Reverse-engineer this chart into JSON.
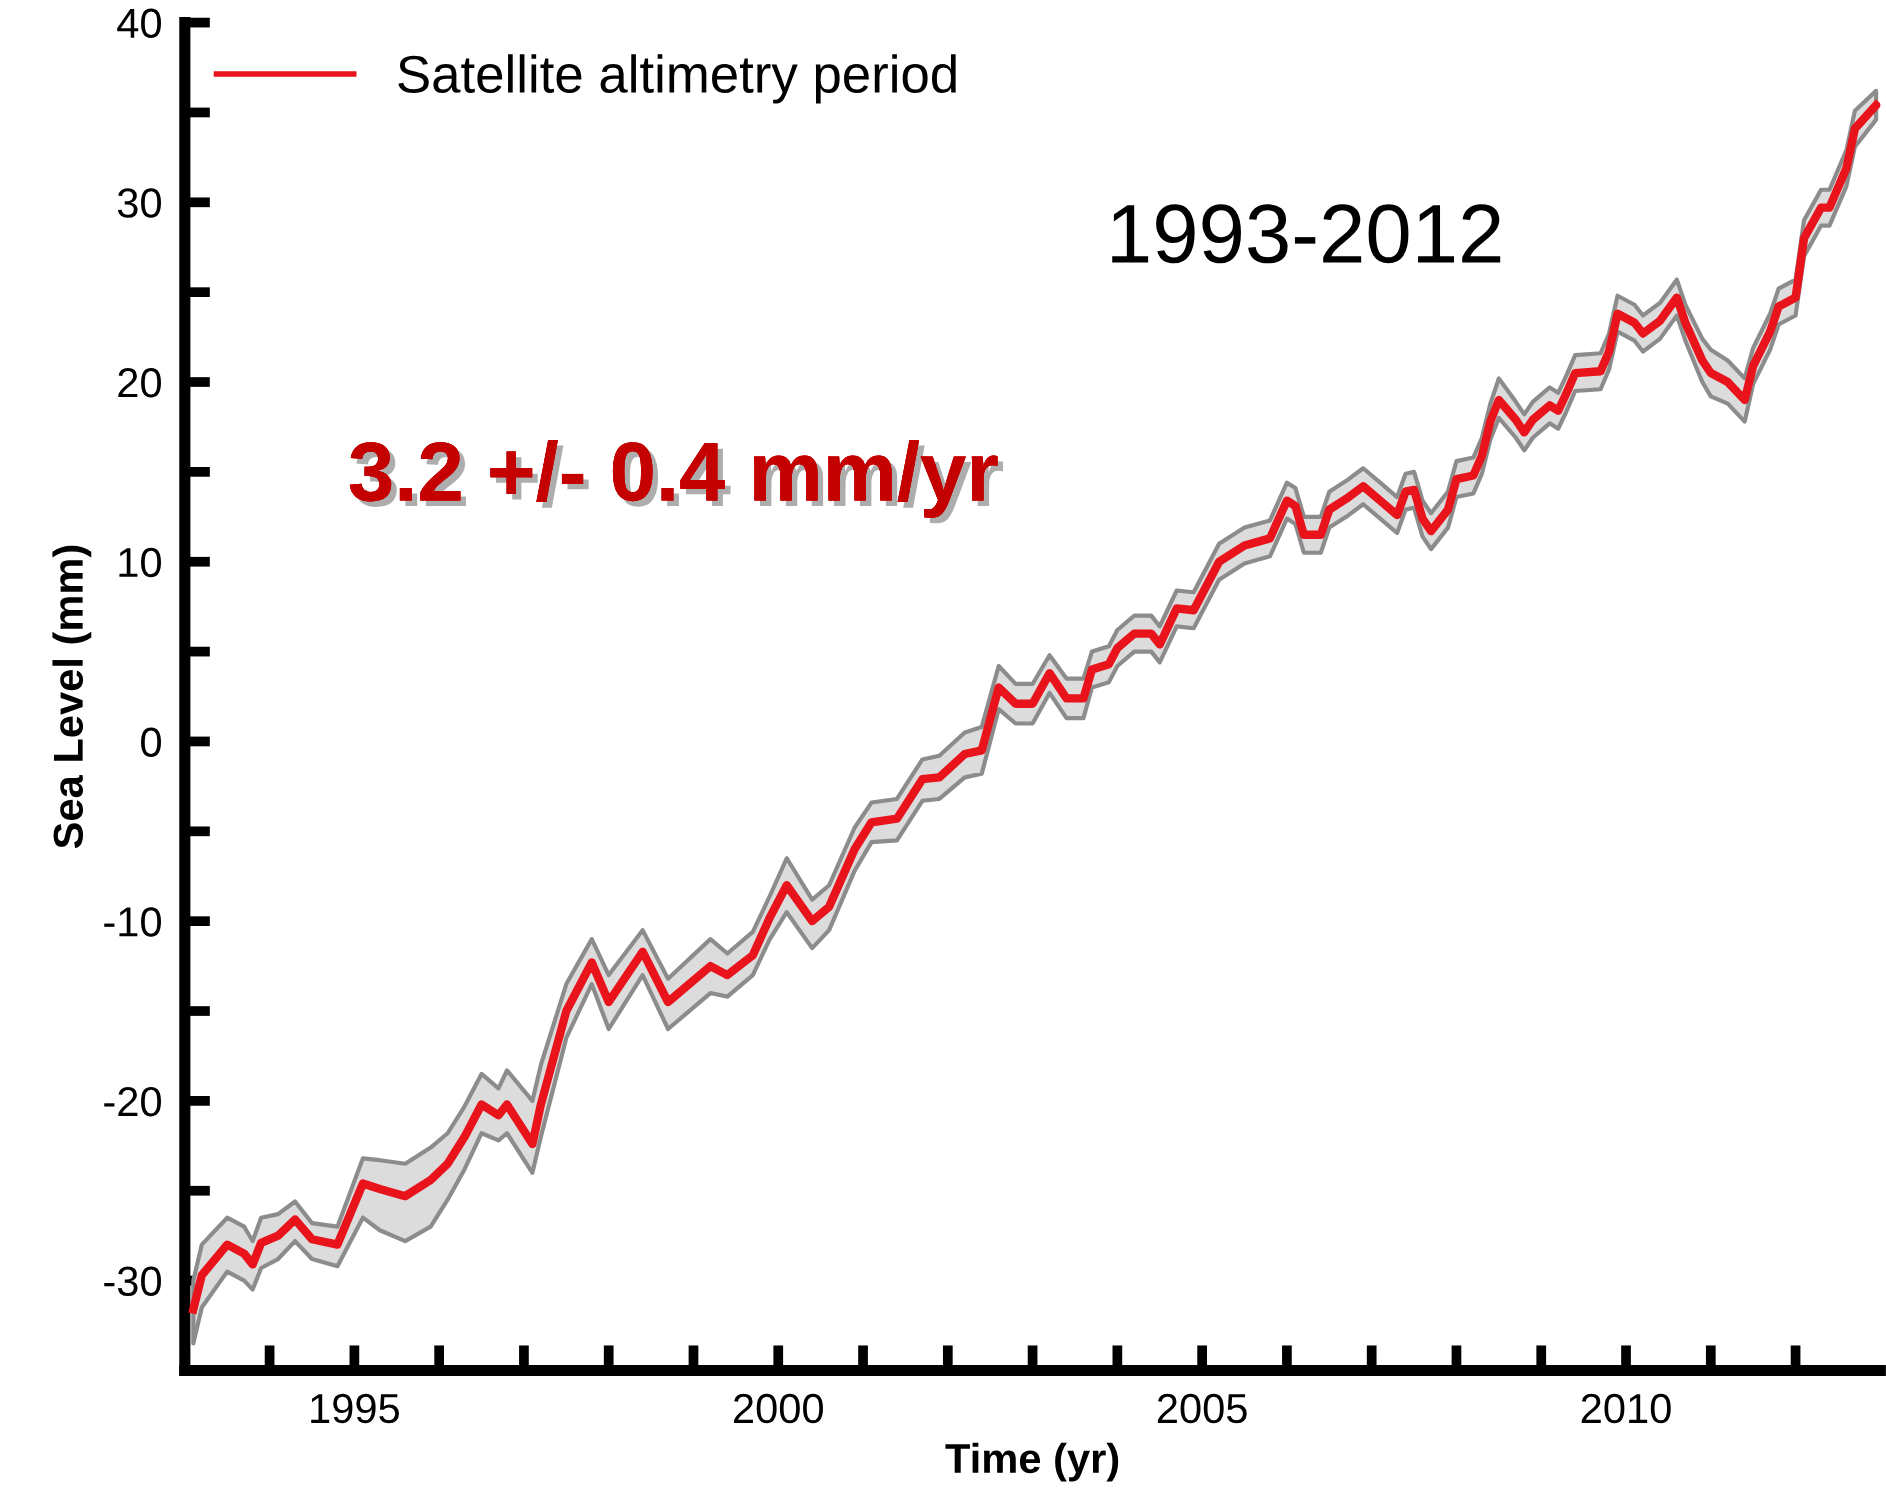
{
  "chart_data": {
    "type": "line",
    "xlabel": "Time (yr)",
    "ylabel": "Sea Level (mm)",
    "xlim": [
      1993,
      2013
    ],
    "ylim": [
      -35,
      40
    ],
    "xticks": [
      {
        "value": 1994,
        "label": null
      },
      1995,
      {
        "value": 1996,
        "label": null
      },
      {
        "value": 1997,
        "label": null
      },
      {
        "value": 1998,
        "label": null
      },
      {
        "value": 1999,
        "label": null
      },
      2000,
      {
        "value": 2001,
        "label": null
      },
      {
        "value": 2002,
        "label": null
      },
      {
        "value": 2003,
        "label": null
      },
      {
        "value": 2004,
        "label": null
      },
      2005,
      {
        "value": 2006,
        "label": null
      },
      {
        "value": 2007,
        "label": null
      },
      {
        "value": 2008,
        "label": null
      },
      {
        "value": 2009,
        "label": null
      },
      2010,
      {
        "value": 2011,
        "label": null
      },
      {
        "value": 2012,
        "label": null
      }
    ],
    "yticks": [
      -30,
      {
        "value": -25,
        "label": null
      },
      -20,
      {
        "value": -15,
        "label": null
      },
      -10,
      {
        "value": -5,
        "label": null
      },
      0,
      {
        "value": 5,
        "label": null
      },
      10,
      {
        "value": 15,
        "label": null
      },
      20,
      {
        "value": 25,
        "label": null
      },
      30,
      {
        "value": 35,
        "label": null
      },
      40
    ],
    "grid": false,
    "legend": "top left",
    "marker": "none",
    "line_style": "solid",
    "annotations": [
      "3.2 +/- 0.4 mm/yr",
      "1993-2012"
    ],
    "series": [
      {
        "name": "Satellite altimetry period",
        "color": "#e8131b",
        "x": [
          1993.1,
          1993.2,
          1993.5,
          1993.7,
          1993.8,
          1993.9,
          1994.1,
          1994.3,
          1994.5,
          1994.8,
          1995.1,
          1995.3,
          1995.6,
          1995.9,
          1996.1,
          1996.3,
          1996.5,
          1996.7,
          1996.8,
          1997.1,
          1997.2,
          1997.5,
          1997.8,
          1998.0,
          1998.4,
          1998.7,
          1999.2,
          1999.4,
          1999.7,
          1999.9,
          2000.1,
          2000.4,
          2000.6,
          2000.9,
          2001.1,
          2001.4,
          2001.7,
          2001.9,
          2002.2,
          2002.4,
          2002.6,
          2002.8,
          2003.0,
          2003.2,
          2003.4,
          2003.6,
          2003.7,
          2003.9,
          2004.0,
          2004.2,
          2004.4,
          2004.5,
          2004.7,
          2004.9,
          2005.2,
          2005.5,
          2005.8,
          2006.0,
          2006.1,
          2006.2,
          2006.4,
          2006.5,
          2006.7,
          2006.9,
          2007.1,
          2007.3,
          2007.4,
          2007.5,
          2007.6,
          2007.7,
          2007.9,
          2008.0,
          2008.2,
          2008.3,
          2008.4,
          2008.5,
          2008.7,
          2008.8,
          2008.9,
          2009.1,
          2009.2,
          2009.3,
          2009.4,
          2009.7,
          2009.8,
          2009.9,
          2010.1,
          2010.2,
          2010.4,
          2010.6,
          2010.7,
          2010.9,
          2011.0,
          2011.2,
          2011.4,
          2011.5,
          2011.7,
          2011.8,
          2012.0,
          2012.1,
          2012.3,
          2012.4,
          2012.6,
          2012.7,
          2012.95
        ],
        "values": [
          -31.6,
          -29.7,
          -28.0,
          -28.5,
          -29.1,
          -27.9,
          -27.5,
          -26.6,
          -27.7,
          -28.0,
          -24.6,
          -24.9,
          -25.3,
          -24.4,
          -23.5,
          -22.0,
          -20.2,
          -20.8,
          -20.2,
          -22.4,
          -20.2,
          -15.0,
          -12.3,
          -14.5,
          -11.7,
          -14.5,
          -12.5,
          -13.0,
          -11.9,
          -9.8,
          -8.0,
          -10.0,
          -9.2,
          -6.0,
          -4.5,
          -4.3,
          -2.1,
          -2.0,
          -0.7,
          -0.5,
          3.0,
          2.1,
          2.1,
          3.8,
          2.4,
          2.4,
          4.0,
          4.3,
          5.2,
          6.0,
          6.0,
          5.4,
          7.4,
          7.3,
          10.0,
          10.9,
          11.3,
          13.4,
          13.1,
          11.5,
          11.5,
          12.9,
          13.5,
          14.2,
          13.4,
          12.6,
          13.9,
          14.0,
          12.4,
          11.7,
          12.9,
          14.6,
          14.8,
          15.9,
          17.8,
          19.0,
          17.9,
          17.2,
          17.9,
          18.7,
          18.4,
          19.4,
          20.5,
          20.6,
          21.7,
          23.8,
          23.3,
          22.7,
          23.4,
          24.7,
          23.3,
          21.2,
          20.5,
          20.0,
          19.0,
          20.9,
          22.8,
          24.2,
          24.7,
          28.0,
          29.7,
          29.7,
          31.9,
          34.1,
          35.4
        ],
        "lower": [
          -33.5,
          -31.5,
          -29.5,
          -30.0,
          -30.5,
          -29.3,
          -28.8,
          -27.8,
          -28.8,
          -29.2,
          -26.5,
          -27.2,
          -27.8,
          -27.0,
          -25.5,
          -23.8,
          -21.8,
          -22.2,
          -21.8,
          -24.0,
          -22.0,
          -16.5,
          -13.5,
          -16.0,
          -13.0,
          -16.0,
          -14.0,
          -14.2,
          -13.0,
          -11.0,
          -9.5,
          -11.5,
          -10.5,
          -7.2,
          -5.6,
          -5.5,
          -3.3,
          -3.2,
          -2.0,
          -1.8,
          1.8,
          1.0,
          1.0,
          2.7,
          1.3,
          1.3,
          3.0,
          3.3,
          4.2,
          5.0,
          5.0,
          4.4,
          6.4,
          6.3,
          9.0,
          9.9,
          10.3,
          12.4,
          12.1,
          10.5,
          10.5,
          11.9,
          12.5,
          13.2,
          12.4,
          11.6,
          12.9,
          13.0,
          11.4,
          10.7,
          11.9,
          13.6,
          13.8,
          14.9,
          16.8,
          18.0,
          16.9,
          16.2,
          16.9,
          17.7,
          17.4,
          18.4,
          19.5,
          19.6,
          20.7,
          22.8,
          22.3,
          21.7,
          22.4,
          23.7,
          22.3,
          20.0,
          19.2,
          18.8,
          17.8,
          19.9,
          21.8,
          23.2,
          23.7,
          27.0,
          28.7,
          28.7,
          30.9,
          33.1,
          34.6
        ],
        "upper": [
          -30.0,
          -28.0,
          -26.5,
          -27.0,
          -27.8,
          -26.5,
          -26.3,
          -25.6,
          -26.8,
          -27.0,
          -23.2,
          -23.3,
          -23.5,
          -22.6,
          -21.8,
          -20.3,
          -18.5,
          -19.3,
          -18.3,
          -20.0,
          -18.0,
          -13.5,
          -11.0,
          -13.0,
          -10.5,
          -13.2,
          -11.0,
          -11.8,
          -10.6,
          -8.6,
          -6.5,
          -8.8,
          -8.0,
          -4.8,
          -3.4,
          -3.2,
          -1.0,
          -0.8,
          0.5,
          0.8,
          4.2,
          3.2,
          3.2,
          4.8,
          3.5,
          3.5,
          5.0,
          5.3,
          6.2,
          7.0,
          7.0,
          6.4,
          8.4,
          8.3,
          11.0,
          11.9,
          12.3,
          14.4,
          14.1,
          12.5,
          12.5,
          13.9,
          14.5,
          15.2,
          14.4,
          13.6,
          14.9,
          15.0,
          13.4,
          12.7,
          13.9,
          15.6,
          15.8,
          16.9,
          18.8,
          20.2,
          18.9,
          18.2,
          18.9,
          19.7,
          19.4,
          20.4,
          21.5,
          21.6,
          22.7,
          24.8,
          24.3,
          23.7,
          24.4,
          25.7,
          24.3,
          22.4,
          21.8,
          21.2,
          20.2,
          21.9,
          23.8,
          25.2,
          25.7,
          29.0,
          30.7,
          30.7,
          32.9,
          35.1,
          36.2
        ]
      }
    ]
  }
}
